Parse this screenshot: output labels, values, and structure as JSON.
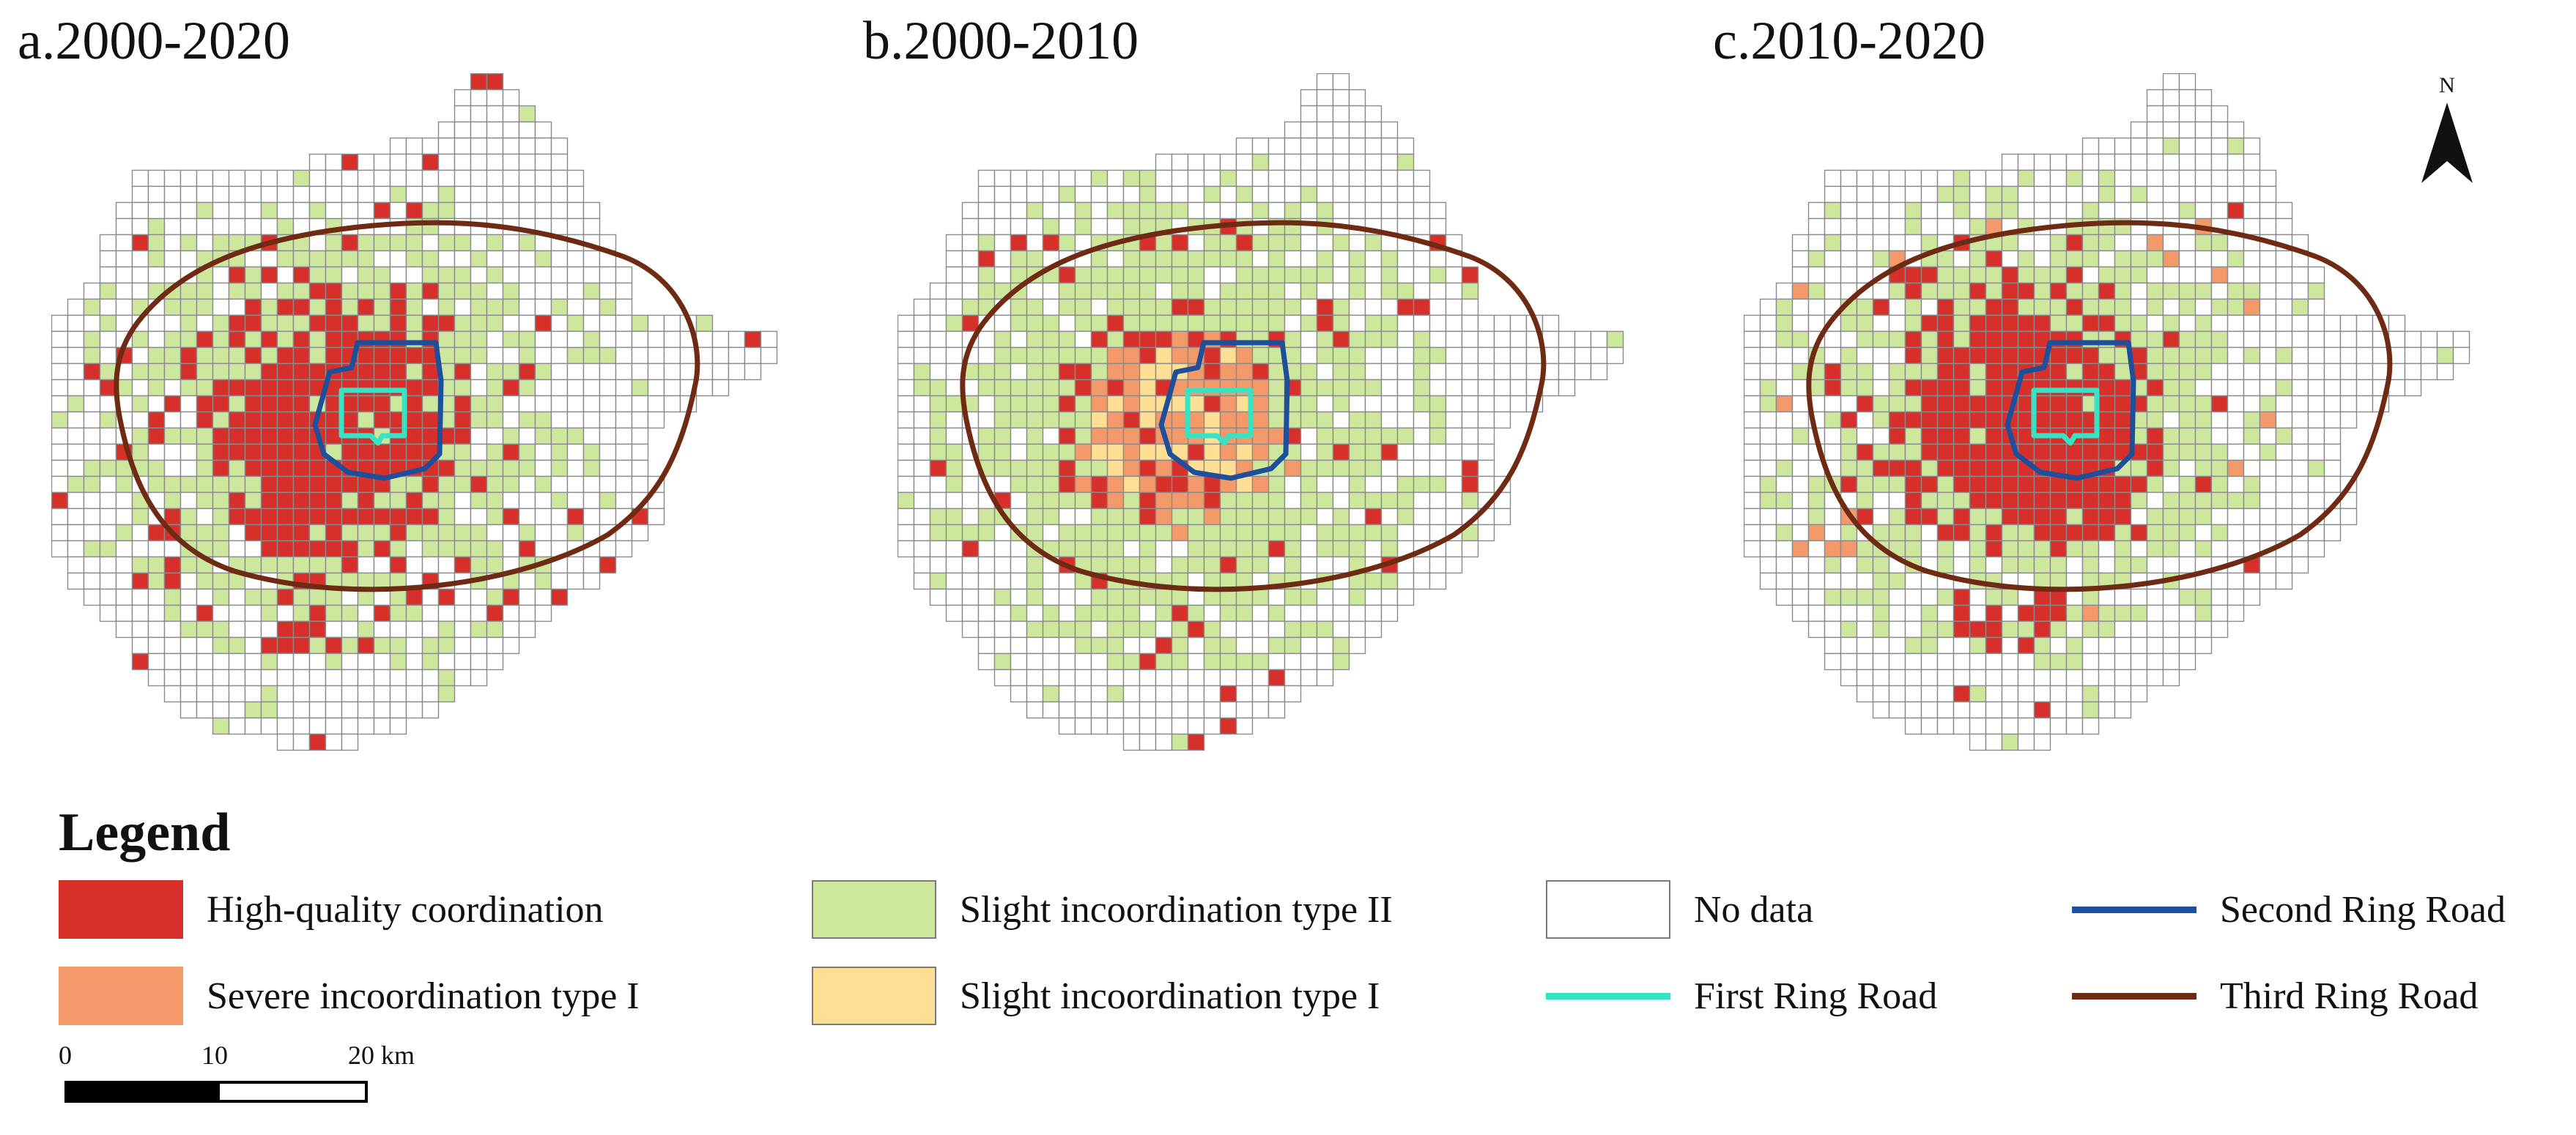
{
  "panels": [
    {
      "id": "a",
      "title": "a.2000-2020"
    },
    {
      "id": "b",
      "title": "b.2000-2010"
    },
    {
      "id": "c",
      "title": "c.2010-2020"
    }
  ],
  "north_arrow": {
    "label": "N"
  },
  "legend": {
    "title": "Legend",
    "items": [
      {
        "key": "high",
        "label": "High-quality coordination",
        "color": "#d7302b",
        "kind": "fill"
      },
      {
        "key": "severe1",
        "label": "Severe incoordination type I",
        "color": "#f3996a",
        "kind": "fill"
      },
      {
        "key": "slight2",
        "label": "Slight incoordination type II",
        "color": "#cde89c",
        "kind": "fill"
      },
      {
        "key": "slight1",
        "label": "Slight incoordination type I",
        "color": "#fedf94",
        "kind": "fill"
      },
      {
        "key": "nodata",
        "label": "No data",
        "color": "#ffffff",
        "kind": "fill"
      },
      {
        "key": "ring1",
        "label": "First Ring Road",
        "color": "#36e3c4",
        "kind": "line"
      },
      {
        "key": "ring2",
        "label": "Second Ring Road",
        "color": "#1e4f9b",
        "kind": "line"
      },
      {
        "key": "ring3",
        "label": "Third Ring Road",
        "color": "#6e2a12",
        "kind": "line"
      }
    ]
  },
  "scale_bar": {
    "ticks": [
      "0",
      "10",
      "20 km"
    ]
  },
  "grid_line_color": "#8a8a8a"
}
